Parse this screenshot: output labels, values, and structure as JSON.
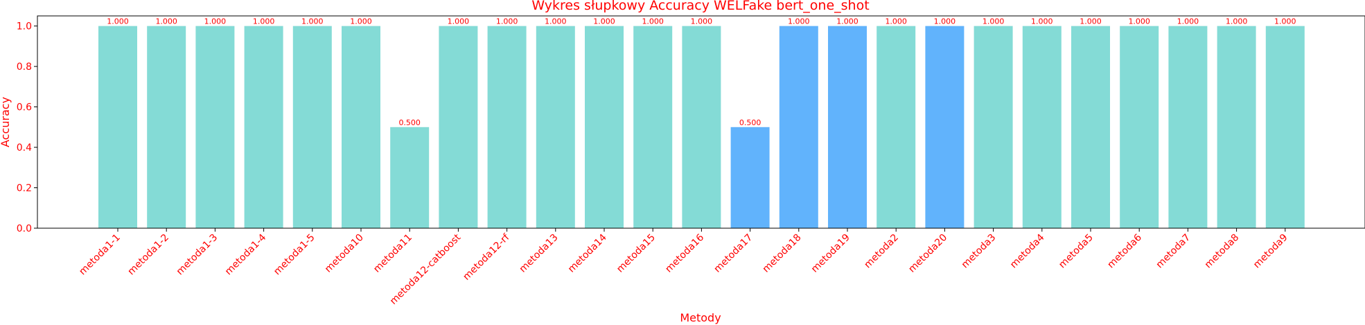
{
  "chart_data": {
    "type": "bar",
    "title": "Wykres słupkowy Accuracy WELFake bert_one_shot",
    "xlabel": "Metody",
    "ylabel": "Accuracy",
    "ylim": [
      0,
      1.05
    ],
    "yticks": [
      "0.0",
      "0.2",
      "0.4",
      "0.6",
      "0.8",
      "1.0"
    ],
    "grid": false,
    "label_color": "#ff0000",
    "categories": [
      "metoda1-1",
      "metoda1-2",
      "metoda1-3",
      "metoda1-4",
      "metoda1-5",
      "metoda10",
      "metoda11",
      "metoda12-catboost",
      "metoda12-rf",
      "metoda13",
      "metoda14",
      "metoda15",
      "metoda16",
      "metoda17",
      "metoda18",
      "metoda19",
      "metoda2",
      "metoda20",
      "metoda3",
      "metoda4",
      "metoda5",
      "metoda6",
      "metoda7",
      "metoda8",
      "metoda9"
    ],
    "values": [
      1.0,
      1.0,
      1.0,
      1.0,
      1.0,
      1.0,
      0.5,
      1.0,
      1.0,
      1.0,
      1.0,
      1.0,
      1.0,
      0.5,
      1.0,
      1.0,
      1.0,
      1.0,
      1.0,
      1.0,
      1.0,
      1.0,
      1.0,
      1.0,
      1.0
    ],
    "value_labels": [
      "1.000",
      "1.000",
      "1.000",
      "1.000",
      "1.000",
      "1.000",
      "0.500",
      "1.000",
      "1.000",
      "1.000",
      "1.000",
      "1.000",
      "1.000",
      "0.500",
      "1.000",
      "1.000",
      "1.000",
      "1.000",
      "1.000",
      "1.000",
      "1.000",
      "1.000",
      "1.000",
      "1.000",
      "1.000"
    ],
    "bar_colors": [
      "#84dbd6",
      "#84dbd6",
      "#84dbd6",
      "#84dbd6",
      "#84dbd6",
      "#84dbd6",
      "#84dbd6",
      "#84dbd6",
      "#84dbd6",
      "#84dbd6",
      "#84dbd6",
      "#84dbd6",
      "#84dbd6",
      "#61b3fc",
      "#61b3fc",
      "#61b3fc",
      "#84dbd6",
      "#61b3fc",
      "#84dbd6",
      "#84dbd6",
      "#84dbd6",
      "#84dbd6",
      "#84dbd6",
      "#84dbd6",
      "#84dbd6"
    ]
  }
}
